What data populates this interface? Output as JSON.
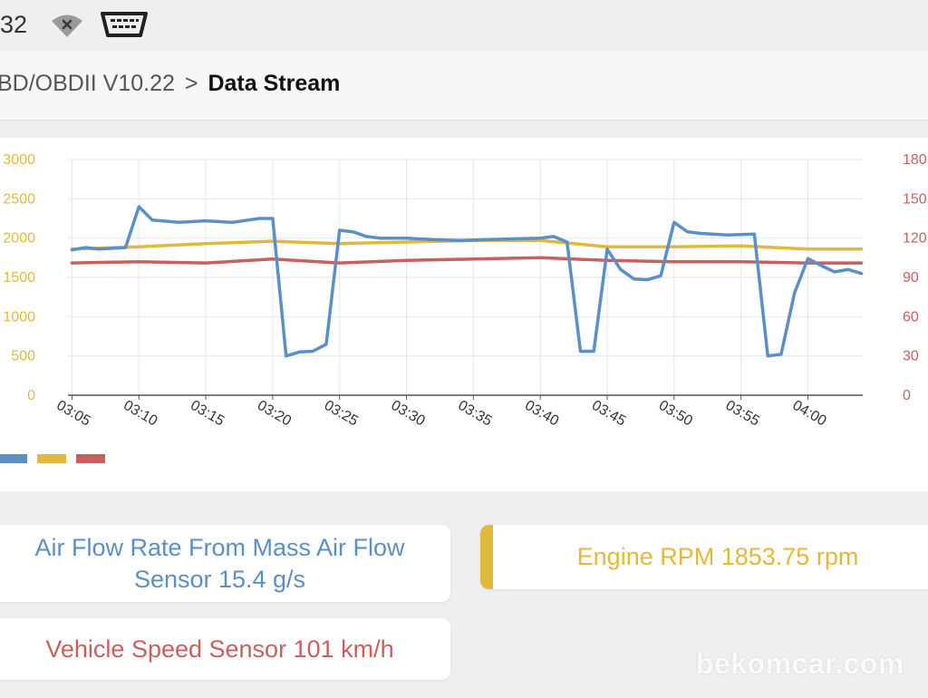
{
  "status_bar": {
    "time": "32",
    "wifi_icon": "wifi-off-icon",
    "obd_icon": "obd-connector-icon"
  },
  "header": {
    "breadcrumb_parent": "BD/OBDII V10.22",
    "breadcrumb_separator": ">",
    "breadcrumb_current": "Data Stream"
  },
  "colors": {
    "maf": "#5b8fc7",
    "rpm": "#e2b93a",
    "speed": "#c9605e",
    "grid": "#e6e6e6"
  },
  "chart_data": {
    "type": "line",
    "x_ticks": [
      "03:05",
      "03:10",
      "03:15",
      "03:20",
      "03:25",
      "03:30",
      "03:35",
      "03:40",
      "03:45",
      "03:50",
      "03:55",
      "04:00"
    ],
    "y_left_ticks": [
      "0",
      "500",
      "1000",
      "1500",
      "2000",
      "2500",
      "3000"
    ],
    "y_right_ticks": [
      "0",
      "30",
      "60",
      "90",
      "120",
      "150",
      "180"
    ],
    "ylim_left": [
      0,
      3000
    ],
    "ylim_right": [
      0,
      180
    ],
    "grid": true,
    "legend": "bottom-left",
    "series": [
      {
        "key": "maf",
        "axis": "left",
        "x": [
          "03:05",
          "03:06",
          "03:07",
          "03:08",
          "03:09",
          "03:10",
          "03:11",
          "03:13",
          "03:15",
          "03:17",
          "03:19",
          "03:20",
          "03:21",
          "03:22",
          "03:23",
          "03:24",
          "03:25",
          "03:26",
          "03:27",
          "03:28",
          "03:30",
          "03:32",
          "03:34",
          "03:36",
          "03:38",
          "03:40",
          "03:41",
          "03:42",
          "03:43",
          "03:44",
          "03:45",
          "03:46",
          "03:47",
          "03:48",
          "03:49",
          "03:50",
          "03:51",
          "03:52",
          "03:54",
          "03:56",
          "03:57",
          "03:58",
          "03:59",
          "04:00",
          "04:01",
          "04:02",
          "04:03",
          "04:04"
        ],
        "values": [
          1850,
          1880,
          1860,
          1870,
          1880,
          2400,
          2230,
          2200,
          2220,
          2200,
          2250,
          2250,
          500,
          550,
          560,
          650,
          2100,
          2080,
          2020,
          2000,
          2000,
          1980,
          1970,
          1980,
          1990,
          2000,
          2020,
          1950,
          560,
          560,
          1860,
          1600,
          1480,
          1470,
          1520,
          2200,
          2080,
          2060,
          2040,
          2050,
          500,
          520,
          1300,
          1740,
          1650,
          1570,
          1600,
          1550
        ]
      },
      {
        "key": "rpm",
        "axis": "left",
        "x": [
          "03:05",
          "03:10",
          "03:15",
          "03:20",
          "03:25",
          "03:30",
          "03:35",
          "03:40",
          "03:45",
          "03:50",
          "03:55",
          "04:00",
          "04:04"
        ],
        "values": [
          1860,
          1890,
          1930,
          1960,
          1930,
          1950,
          1970,
          1970,
          1890,
          1890,
          1900,
          1860,
          1860
        ]
      },
      {
        "key": "speed",
        "axis": "right",
        "x": [
          "03:05",
          "03:10",
          "03:15",
          "03:20",
          "03:25",
          "03:30",
          "03:35",
          "03:40",
          "03:45",
          "03:50",
          "03:55",
          "04:00",
          "04:04"
        ],
        "values": [
          101,
          102,
          101,
          104,
          101,
          103,
          104,
          105,
          103,
          102,
          102,
          101,
          101
        ]
      }
    ]
  },
  "cards": {
    "maf": "Air Flow Rate From Mass Air Flow Sensor 15.4 g/s",
    "rpm": "Engine RPM 1853.75 rpm",
    "speed": "Vehicle Speed Sensor 101 km/h"
  },
  "watermark": "bekomcar.com"
}
